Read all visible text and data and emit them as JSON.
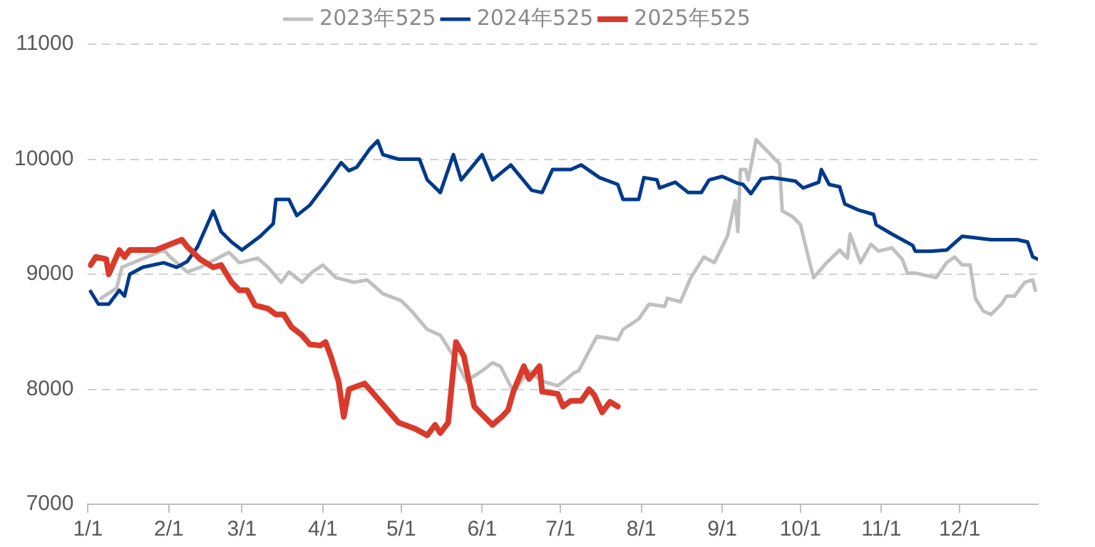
{
  "chart_data": {
    "type": "line",
    "xlim": [
      "--01-01",
      "--12-31"
    ],
    "xticks": [
      {
        "value": "--01-01",
        "label": "1/1"
      },
      {
        "value": "--02-01",
        "label": "2/1"
      },
      {
        "value": "--03-01",
        "label": "3/1"
      },
      {
        "value": "--04-01",
        "label": "4/1"
      },
      {
        "value": "--05-01",
        "label": "5/1"
      },
      {
        "value": "--06-01",
        "label": "6/1"
      },
      {
        "value": "--07-01",
        "label": "7/1"
      },
      {
        "value": "--08-01",
        "label": "8/1"
      },
      {
        "value": "--09-01",
        "label": "9/1"
      },
      {
        "value": "--10-01",
        "label": "10/1"
      },
      {
        "value": "--11-01",
        "label": "11/1"
      },
      {
        "value": "--12-01",
        "label": "12/1"
      }
    ],
    "ylim": [
      7000,
      11000
    ],
    "yticks": [
      7000,
      8000,
      9000,
      10000,
      11000
    ],
    "grid": "y",
    "legend": "top",
    "marker": "none",
    "line_style": "solid",
    "series": [
      {
        "name": "2023年525",
        "color": "#c0c0c0",
        "x": [
          "--01-06",
          "--01-12",
          "--01-14",
          "--01-30",
          "--02-02",
          "--02-08",
          "--02-13",
          "--02-24",
          "--02-28",
          "--03-07",
          "--03-11",
          "--03-16",
          "--03-19",
          "--03-24",
          "--03-28",
          "--04-01",
          "--04-06",
          "--04-13",
          "--04-18",
          "--04-24",
          "--05-01",
          "--05-05",
          "--05-11",
          "--05-16",
          "--05-21",
          "--05-26",
          "--06-01",
          "--06-05",
          "--06-08",
          "--06-13",
          "--06-16",
          "--06-19",
          "--06-24",
          "--06-30",
          "--07-04",
          "--07-06",
          "--07-08",
          "--07-15",
          "--07-23",
          "--07-25",
          "--07-31",
          "--08-04",
          "--08-10",
          "--08-11",
          "--08-16",
          "--08-20",
          "--08-25",
          "--08-29",
          "--09-03",
          "--09-06",
          "--09-07",
          "--09-08",
          "--09-10",
          "--09-11",
          "--09-14",
          "--09-23",
          "--09-24",
          "--09-28",
          "--10-01",
          "--10-04",
          "--10-06",
          "--10-11",
          "--10-16",
          "--10-19",
          "--10-20",
          "--10-24",
          "--10-28",
          "--10-31",
          "--11-05",
          "--11-09",
          "--11-11",
          "--11-14",
          "--11-22",
          "--11-26",
          "--11-29",
          "--12-02",
          "--12-05",
          "--12-07",
          "--12-10",
          "--12-13",
          "--12-17",
          "--12-19",
          "--12-22",
          "--12-26",
          "--12-29",
          "--12-30"
        ],
        "values": [
          8790,
          8880,
          9060,
          9210,
          9140,
          9020,
          9060,
          9190,
          9100,
          9140,
          9060,
          8930,
          9020,
          8930,
          9020,
          9080,
          8970,
          8930,
          8950,
          8830,
          8770,
          8680,
          8520,
          8470,
          8290,
          8070,
          8160,
          8230,
          8200,
          7980,
          8070,
          8160,
          8070,
          8030,
          8100,
          8140,
          8160,
          8460,
          8430,
          8520,
          8610,
          8740,
          8720,
          8790,
          8760,
          8970,
          9150,
          9100,
          9330,
          9640,
          9370,
          9910,
          9910,
          9820,
          10170,
          9960,
          9550,
          9500,
          9430,
          9150,
          8970,
          9100,
          9210,
          9140,
          9350,
          9100,
          9260,
          9200,
          9230,
          9130,
          9010,
          9010,
          8970,
          9100,
          9150,
          9080,
          9080,
          8790,
          8680,
          8650,
          8740,
          8810,
          8810,
          8930,
          8950,
          8860
        ]
      },
      {
        "name": "2024年525",
        "color": "#003a8c",
        "x": [
          "--01-02",
          "--01-05",
          "--01-09",
          "--01-13",
          "--01-15",
          "--01-17",
          "--01-22",
          "--01-30",
          "--02-04",
          "--02-08",
          "--02-12",
          "--02-18",
          "--02-21",
          "--02-25",
          "--03-01",
          "--03-08",
          "--03-13",
          "--03-14",
          "--03-19",
          "--03-22",
          "--03-27",
          "--04-02",
          "--04-08",
          "--04-11",
          "--04-14",
          "--04-19",
          "--04-22",
          "--04-24",
          "--04-30",
          "--05-08",
          "--05-11",
          "--05-16",
          "--05-21",
          "--05-24",
          "--06-01",
          "--06-05",
          "--06-12",
          "--06-20",
          "--06-24",
          "--06-28",
          "--07-05",
          "--07-09",
          "--07-16",
          "--07-23",
          "--07-25",
          "--07-31",
          "--08-02",
          "--08-07",
          "--08-08",
          "--08-14",
          "--08-19",
          "--08-24",
          "--08-27",
          "--09-01",
          "--09-07",
          "--09-09",
          "--09-12",
          "--09-16",
          "--09-20",
          "--09-29",
          "--10-02",
          "--10-08",
          "--10-09",
          "--10-12",
          "--10-16",
          "--10-18",
          "--10-23",
          "--10-29",
          "--10-30",
          "--11-05",
          "--11-13",
          "--11-14",
          "--11-20",
          "--11-26",
          "--12-02",
          "--12-13",
          "--12-23",
          "--12-27",
          "--12-29",
          "--12-31"
        ],
        "values": [
          8850,
          8740,
          8740,
          8860,
          8810,
          9000,
          9060,
          9100,
          9060,
          9110,
          9240,
          9550,
          9370,
          9280,
          9210,
          9330,
          9440,
          9650,
          9650,
          9510,
          9600,
          9780,
          9970,
          9900,
          9930,
          10090,
          10160,
          10040,
          10000,
          10000,
          9820,
          9710,
          10040,
          9820,
          10040,
          9820,
          9950,
          9730,
          9710,
          9910,
          9910,
          9950,
          9840,
          9780,
          9650,
          9650,
          9840,
          9820,
          9750,
          9800,
          9710,
          9710,
          9820,
          9850,
          9790,
          9780,
          9700,
          9830,
          9840,
          9810,
          9750,
          9800,
          9910,
          9780,
          9760,
          9610,
          9560,
          9520,
          9430,
          9350,
          9250,
          9200,
          9200,
          9210,
          9330,
          9300,
          9300,
          9280,
          9150,
          9130
        ]
      },
      {
        "name": "2025年525",
        "color": "#d93a2b",
        "x": [
          "--01-02",
          "--01-04",
          "--01-08",
          "--01-09",
          "--01-13",
          "--01-15",
          "--01-17",
          "--01-27",
          "--02-06",
          "--02-08",
          "--02-13",
          "--02-18",
          "--02-21",
          "--02-25",
          "--02-28",
          "--03-03",
          "--03-06",
          "--03-11",
          "--03-14",
          "--03-17",
          "--03-20",
          "--03-24",
          "--03-27",
          "--03-31",
          "--04-02",
          "--04-04",
          "--04-07",
          "--04-09",
          "--04-11",
          "--04-17",
          "--04-30",
          "--05-06",
          "--05-11",
          "--05-14",
          "--05-16",
          "--05-19",
          "--05-22",
          "--05-25",
          "--05-27",
          "--05-29",
          "--06-01",
          "--06-05",
          "--06-09",
          "--06-11",
          "--06-13",
          "--06-17",
          "--06-19",
          "--06-23",
          "--06-24",
          "--06-30",
          "--07-02",
          "--07-05",
          "--07-09",
          "--07-12",
          "--07-14",
          "--07-17",
          "--07-20",
          "--07-23"
        ],
        "values": [
          9080,
          9150,
          9130,
          9000,
          9210,
          9150,
          9210,
          9210,
          9300,
          9240,
          9130,
          9060,
          9080,
          8930,
          8860,
          8860,
          8730,
          8700,
          8650,
          8650,
          8540,
          8470,
          8390,
          8380,
          8410,
          8290,
          8070,
          7760,
          8000,
          8050,
          7710,
          7660,
          7600,
          7690,
          7620,
          7710,
          8410,
          8290,
          8070,
          7850,
          7780,
          7690,
          7770,
          7820,
          7980,
          8200,
          8090,
          8200,
          7980,
          7960,
          7850,
          7900,
          7900,
          8000,
          7950,
          7800,
          7890,
          7850
        ]
      }
    ]
  }
}
